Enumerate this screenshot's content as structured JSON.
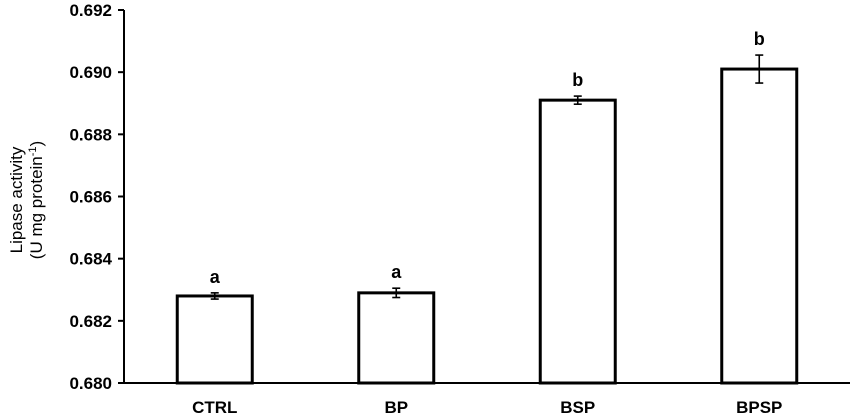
{
  "chart_data": {
    "type": "bar",
    "categories": [
      "CTRL",
      "BP",
      "BSP",
      "BPSP"
    ],
    "values": [
      0.6828,
      0.6829,
      0.6891,
      0.6901
    ],
    "error": [
      0.0001,
      0.00015,
      0.00013,
      0.00045
    ],
    "significance_labels": [
      "a",
      "a",
      "b",
      "b"
    ],
    "ylabel_line1": "Lipase activity",
    "ylabel_line2_main": "(U mg protein",
    "ylabel_line2_sup": "-1",
    "ylabel_line2_end": ")",
    "ylim": [
      0.68,
      0.692
    ],
    "yticks": [
      "0.680",
      "0.682",
      "0.684",
      "0.686",
      "0.688",
      "0.690",
      "0.692"
    ],
    "grid": false,
    "colors": {
      "bar_fill": "#ffffff",
      "bar_stroke": "#000000"
    }
  }
}
